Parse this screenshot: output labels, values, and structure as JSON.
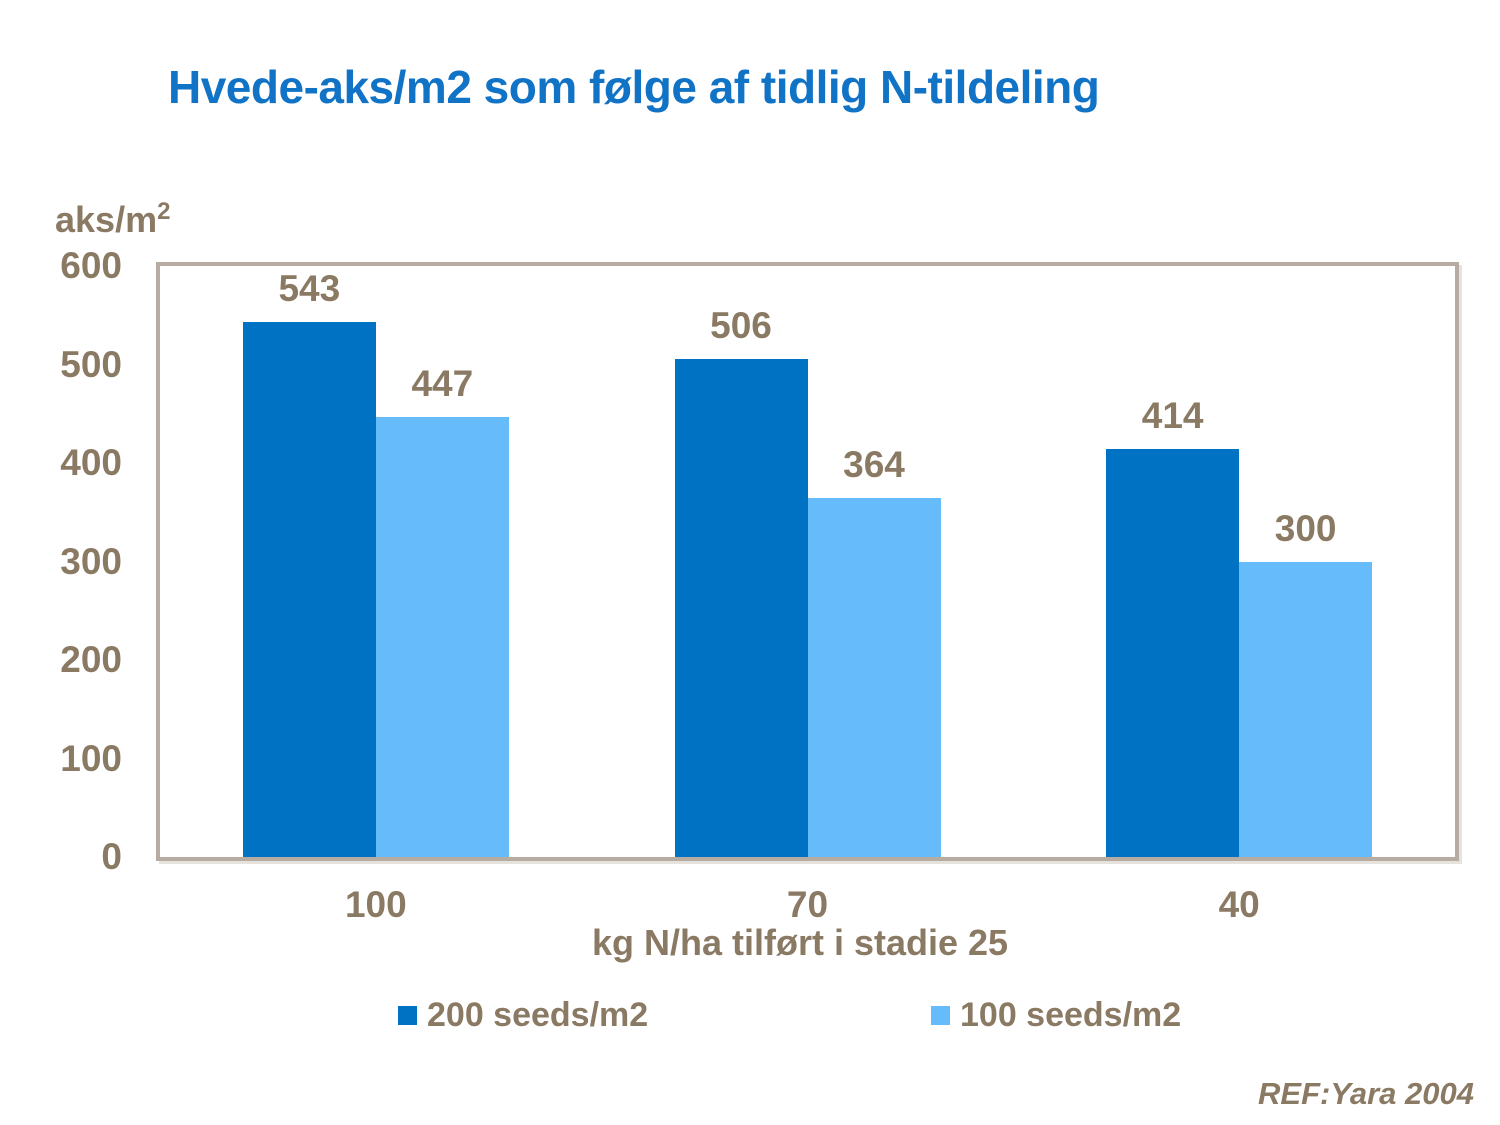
{
  "slide": {
    "title": "Hvede-aks/m2 som følge af tidlig N-tildeling",
    "reference": "REF:Yara 2004"
  },
  "y_axis": {
    "unit_base": "aks/m",
    "unit_sup": "2"
  },
  "chart_data": {
    "type": "bar",
    "title": "Hvede-aks/m2 som følge af tidlig N-tildeling",
    "categories": [
      "100",
      "70",
      "40"
    ],
    "series": [
      {
        "name": "200 seeds/m2",
        "color": "#0072C3",
        "values": [
          543,
          506,
          414
        ]
      },
      {
        "name": "100 seeds/m2",
        "color": "#66BCFB",
        "values": [
          447,
          364,
          300
        ]
      }
    ],
    "xlabel": "kg N/ha tilført i stadie 25",
    "ylabel": "aks/m2",
    "ylim": [
      0,
      600
    ],
    "yticks": [
      0,
      100,
      200,
      300,
      400,
      500,
      600
    ],
    "grid": false,
    "legend_position": "bottom",
    "bar_value_labels": true
  },
  "colors": {
    "title_text": "#1173C6",
    "axis_text": "#8A7963",
    "plot_border": "#B6ACA1",
    "background": "#FFFFFF",
    "series_dark_blue": "#0072C3",
    "series_light_blue": "#66BCFB"
  }
}
